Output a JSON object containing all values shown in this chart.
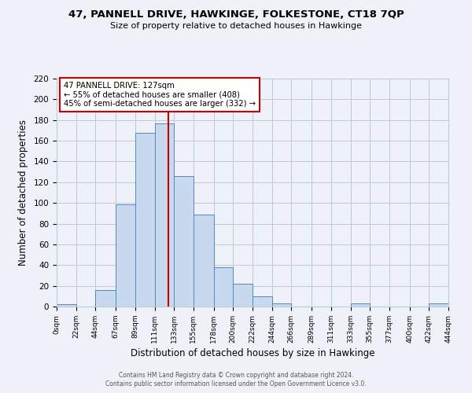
{
  "title": "47, PANNELL DRIVE, HAWKINGE, FOLKESTONE, CT18 7QP",
  "subtitle": "Size of property relative to detached houses in Hawkinge",
  "xlabel": "Distribution of detached houses by size in Hawkinge",
  "ylabel": "Number of detached properties",
  "bin_edges": [
    0,
    22,
    44,
    67,
    89,
    111,
    133,
    155,
    178,
    200,
    222,
    244,
    266,
    289,
    311,
    333,
    355,
    377,
    400,
    422,
    444
  ],
  "bin_heights": [
    2,
    0,
    16,
    99,
    168,
    177,
    126,
    89,
    38,
    22,
    10,
    3,
    0,
    0,
    0,
    3,
    0,
    0,
    0,
    3
  ],
  "bar_color": "#c8d8ee",
  "bar_edge_color": "#5588bb",
  "vline_x": 127,
  "vline_color": "#cc0000",
  "annotation_title": "47 PANNELL DRIVE: 127sqm",
  "annotation_line1": "← 55% of detached houses are smaller (408)",
  "annotation_line2": "45% of semi-detached houses are larger (332) →",
  "annotation_box_color": "#ffffff",
  "annotation_box_edge": "#cc0000",
  "tick_labels": [
    "0sqm",
    "22sqm",
    "44sqm",
    "67sqm",
    "89sqm",
    "111sqm",
    "133sqm",
    "155sqm",
    "178sqm",
    "200sqm",
    "222sqm",
    "244sqm",
    "266sqm",
    "289sqm",
    "311sqm",
    "333sqm",
    "355sqm",
    "377sqm",
    "400sqm",
    "422sqm",
    "444sqm"
  ],
  "ylim": [
    0,
    220
  ],
  "yticks": [
    0,
    20,
    40,
    60,
    80,
    100,
    120,
    140,
    160,
    180,
    200,
    220
  ],
  "footer_line1": "Contains HM Land Registry data © Crown copyright and database right 2024.",
  "footer_line2": "Contains public sector information licensed under the Open Government Licence v3.0.",
  "background_color": "#eef2f8",
  "grid_color": "#c0c8d8"
}
